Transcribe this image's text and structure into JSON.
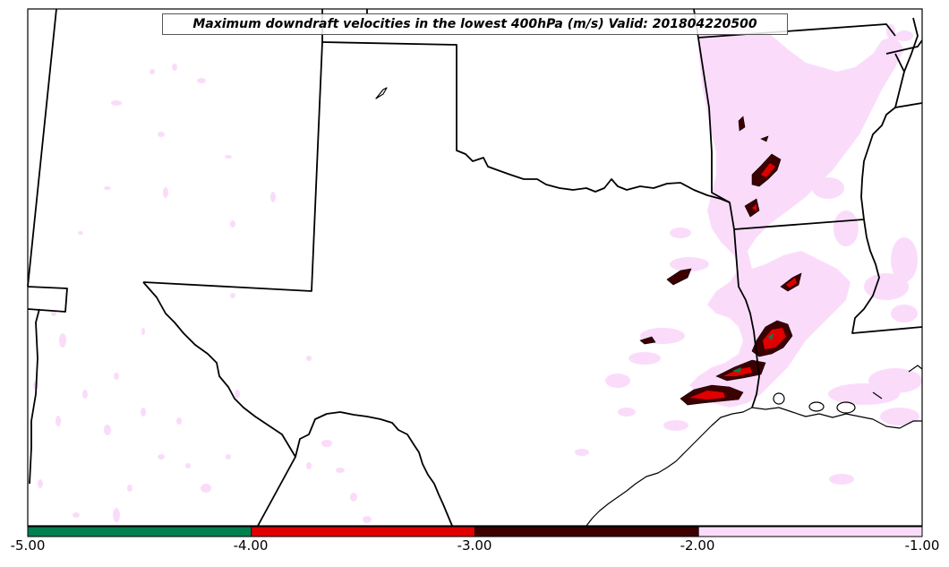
{
  "title": "Maximum downdraft velocities in the lowest 400hPa (m/s) Valid: 201804220500",
  "colorbar": {
    "ticks": [
      "-5.00",
      "-4.00",
      "-3.00",
      "-2.00",
      "-1.00"
    ],
    "bins": [
      {
        "from": -5.0,
        "to": -4.0,
        "color": "#007f4f"
      },
      {
        "from": -4.0,
        "to": -3.0,
        "color": "#e00000"
      },
      {
        "from": -3.0,
        "to": -2.0,
        "color": "#3d0000"
      },
      {
        "from": -2.0,
        "to": -1.0,
        "color": "#fadcfa"
      }
    ]
  },
  "colors": {
    "light": "#fadcfa",
    "dark": "#3d0000",
    "red": "#e00000",
    "green": "#007f4f",
    "border": "#000000"
  }
}
